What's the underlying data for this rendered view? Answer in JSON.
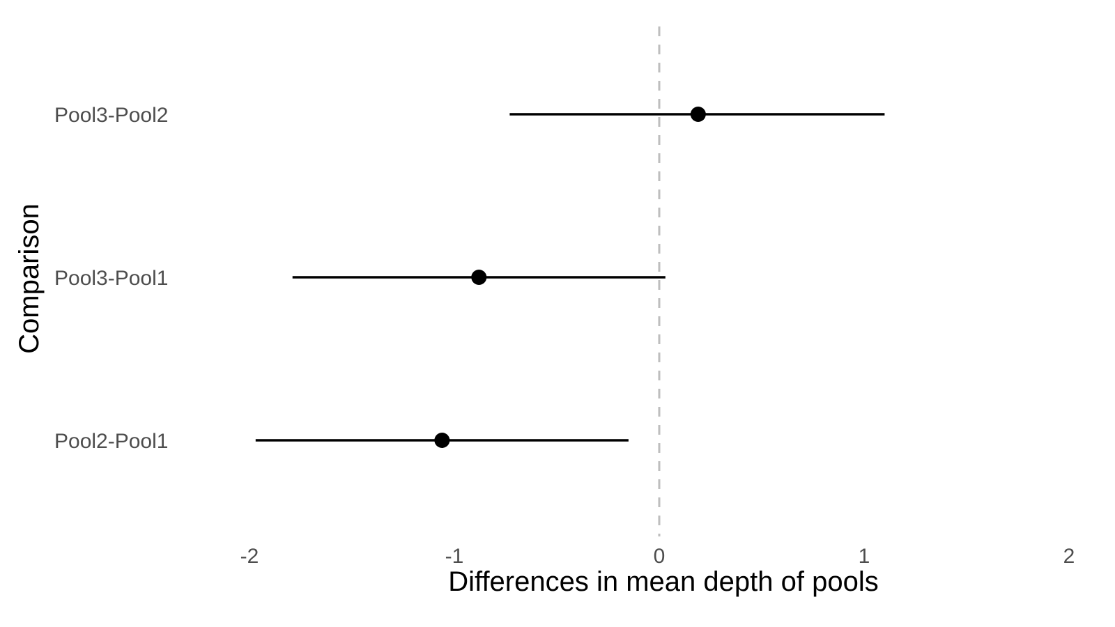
{
  "chart_data": {
    "type": "scatter",
    "subtype": "point-range",
    "title": "",
    "xlabel": "Differences in mean depth of pools",
    "ylabel": "Comparison",
    "xlim": [
      -2,
      2
    ],
    "xticks": [
      -2,
      -1,
      0,
      1,
      2
    ],
    "xtick_labels": [
      "-2",
      "-1",
      "0",
      "1",
      "2"
    ],
    "grid": false,
    "legend": "none",
    "reference_line": {
      "x": 0,
      "style": "dashed",
      "color": "#bebebe"
    },
    "categories": [
      "Pool3-Pool2",
      "Pool3-Pool1",
      "Pool2-Pool1"
    ],
    "estimates": [
      0.19,
      -0.88,
      -1.06
    ],
    "lower": [
      -0.73,
      -1.79,
      -1.97
    ],
    "upper": [
      1.1,
      0.03,
      -0.15
    ],
    "colors": {
      "point": "#000000",
      "interval": "#000000",
      "tick_text": "#4d4d4d",
      "title_text": "#000000"
    }
  }
}
